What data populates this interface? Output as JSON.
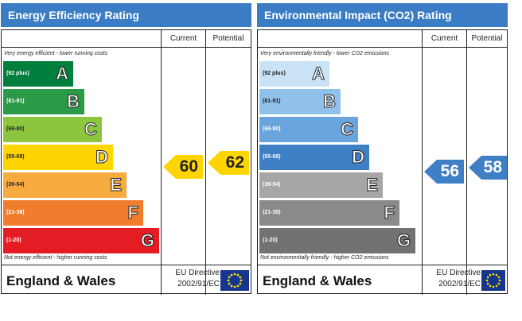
{
  "energy": {
    "title": "Energy Efficiency Rating",
    "columns": {
      "current": "Current",
      "potential": "Potential"
    },
    "top_caption": "Very energy efficient - lower running costs",
    "bottom_caption": "Not energy efficient - higher running costs",
    "bands": [
      {
        "range": "(92 plus)",
        "letter": "A",
        "color": "#007f3d"
      },
      {
        "range": "(81-91)",
        "letter": "B",
        "color": "#2a9a47"
      },
      {
        "range": "(69-80)",
        "letter": "C",
        "color": "#8cc63f"
      },
      {
        "range": "(55-68)",
        "letter": "D",
        "color": "#ffd500"
      },
      {
        "range": "(39-54)",
        "letter": "E",
        "color": "#f7ab3f"
      },
      {
        "range": "(21-38)",
        "letter": "F",
        "color": "#ef7d2d"
      },
      {
        "range": "(1-20)",
        "letter": "G",
        "color": "#e31d23"
      }
    ],
    "current": "60",
    "potential": "62",
    "arrow_color": "#ffd500",
    "region": "England & Wales",
    "directive_line1": "EU Directive",
    "directive_line2": "2002/91/EC"
  },
  "environment": {
    "title": "Environmental Impact (CO2) Rating",
    "columns": {
      "current": "Current",
      "potential": "Potential"
    },
    "top_caption": "Very environmentally friendly - lower CO2 emissions",
    "bottom_caption": "Not environmentally friendly - higher CO2 emissions",
    "bands": [
      {
        "range": "(92 plus)",
        "letter": "A",
        "color": "#c9e2f6"
      },
      {
        "range": "(81-91)",
        "letter": "B",
        "color": "#8fc1ea"
      },
      {
        "range": "(69-80)",
        "letter": "C",
        "color": "#6aa4dc"
      },
      {
        "range": "(55-68)",
        "letter": "D",
        "color": "#3f7fc6"
      },
      {
        "range": "(39-54)",
        "letter": "E",
        "color": "#a6a6a6"
      },
      {
        "range": "(21-38)",
        "letter": "F",
        "color": "#8a8a8a"
      },
      {
        "range": "(1-20)",
        "letter": "G",
        "color": "#727272"
      }
    ],
    "current": "56",
    "potential": "58",
    "arrow_color": "#3f7fc6",
    "region": "England & Wales",
    "directive_line1": "EU Directive",
    "directive_line2": "2002/91/EC"
  }
}
